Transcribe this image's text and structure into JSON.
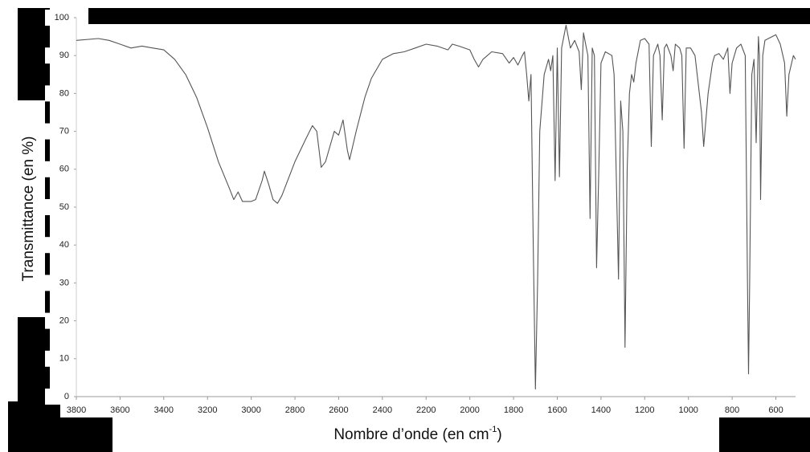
{
  "chart_data": {
    "type": "line",
    "ylabel": "Transmittance (en %)",
    "xlabel_parts": [
      "Nombre d’onde (en cm",
      "-1",
      ")"
    ],
    "xlim": [
      3800,
      510
    ],
    "ylim": [
      0,
      100
    ],
    "xticks": [
      3800,
      3600,
      3400,
      3200,
      3000,
      2800,
      2600,
      2400,
      2200,
      2000,
      1800,
      1600,
      1400,
      1200,
      1000,
      800,
      600
    ],
    "yticks": [
      0,
      10,
      20,
      30,
      40,
      50,
      60,
      70,
      80,
      90,
      100
    ],
    "grid": false,
    "color": "#555555",
    "x": [
      3800,
      3700,
      3650,
      3600,
      3550,
      3500,
      3450,
      3400,
      3350,
      3300,
      3250,
      3200,
      3150,
      3100,
      3080,
      3060,
      3040,
      3000,
      2980,
      2950,
      2940,
      2920,
      2900,
      2880,
      2860,
      2800,
      2750,
      2720,
      2700,
      2680,
      2660,
      2620,
      2600,
      2580,
      2560,
      2550,
      2520,
      2480,
      2450,
      2400,
      2350,
      2300,
      2250,
      2200,
      2150,
      2100,
      2080,
      2050,
      2000,
      1980,
      1960,
      1940,
      1900,
      1850,
      1820,
      1800,
      1780,
      1760,
      1750,
      1740,
      1730,
      1720,
      1710,
      1700,
      1690,
      1680,
      1660,
      1640,
      1630,
      1620,
      1610,
      1600,
      1590,
      1580,
      1560,
      1540,
      1520,
      1500,
      1490,
      1480,
      1470,
      1460,
      1450,
      1440,
      1430,
      1420,
      1410,
      1400,
      1380,
      1350,
      1340,
      1320,
      1310,
      1300,
      1290,
      1280,
      1270,
      1260,
      1250,
      1240,
      1220,
      1200,
      1180,
      1170,
      1160,
      1140,
      1130,
      1120,
      1110,
      1100,
      1080,
      1070,
      1060,
      1040,
      1030,
      1020,
      1010,
      990,
      970,
      960,
      940,
      930,
      910,
      890,
      880,
      860,
      840,
      820,
      810,
      800,
      780,
      760,
      740,
      730,
      725,
      720,
      710,
      700,
      690,
      680,
      675,
      670,
      660,
      650,
      600,
      580,
      560,
      550,
      540,
      520,
      510
    ],
    "values": [
      94,
      94.5,
      94,
      93,
      92,
      92.5,
      92,
      91.5,
      89,
      85,
      79,
      71,
      62,
      55,
      52,
      54,
      51.5,
      51.5,
      52,
      57,
      59.5,
      56,
      52,
      51,
      53,
      62,
      68,
      71.5,
      70,
      60.5,
      62,
      70,
      69,
      73,
      65,
      62.5,
      70,
      79,
      84,
      89,
      90.5,
      91,
      92,
      93,
      92.5,
      91.5,
      93,
      92.5,
      91.5,
      89,
      87,
      89,
      91,
      90.5,
      88,
      89.5,
      87.5,
      90,
      91,
      85,
      78,
      85,
      40,
      2,
      30,
      70,
      85,
      89,
      86,
      90,
      57,
      92,
      58,
      92,
      98,
      92,
      94,
      91,
      81,
      96,
      93,
      90,
      47,
      92,
      90,
      34,
      60,
      88,
      91,
      90,
      85,
      31,
      78,
      70,
      13,
      60,
      80,
      85,
      83,
      88,
      94,
      94.5,
      93,
      66,
      90,
      93,
      90,
      73,
      92,
      93,
      90,
      86,
      93,
      92,
      90,
      65.5,
      92,
      92,
      90,
      85,
      75,
      66,
      80,
      88,
      90,
      90.5,
      89,
      92,
      80,
      88,
      92,
      93,
      90,
      30,
      6,
      30,
      85,
      89,
      67,
      95,
      90,
      52,
      90,
      94,
      95.5,
      93,
      88,
      74,
      85,
      90,
      89
    ]
  }
}
